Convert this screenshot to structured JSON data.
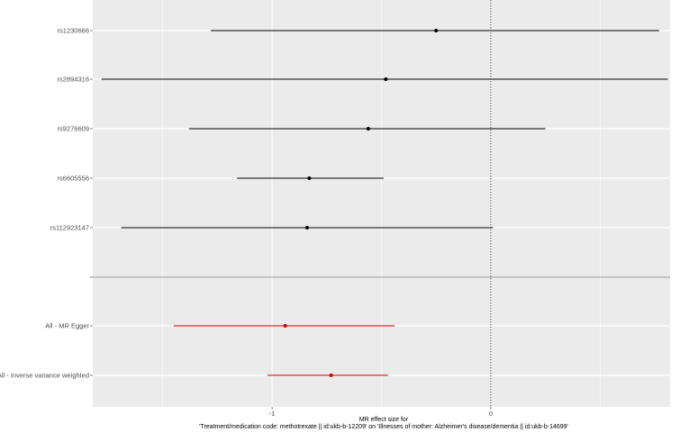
{
  "chart_data": {
    "type": "forest",
    "xlabel_lines": [
      "MR effect size for",
      "'Treatment/medication code: methotrexate || id:ukb-b-12209' on 'Illnesses of mother: Alzheimer's disease/dementia || id:ukb-b-14699'"
    ],
    "xlim": [
      -1.82,
      0.82
    ],
    "x_ticks": [
      -1,
      0
    ],
    "x_tick_labels": [
      "-1",
      "0"
    ],
    "null_line": 0,
    "grid": true,
    "separator_label": "",
    "snp_rows": [
      {
        "label": "rs1230666",
        "estimate": -0.25,
        "lower": -1.28,
        "upper": 0.77
      },
      {
        "label": "rs2894316",
        "estimate": -0.48,
        "lower": -1.78,
        "upper": 0.81
      },
      {
        "label": "rs9276609",
        "estimate": -0.56,
        "lower": -1.38,
        "upper": 0.25
      },
      {
        "label": "rs6605556",
        "estimate": -0.83,
        "lower": -1.16,
        "upper": -0.49
      },
      {
        "label": "rs112923147",
        "estimate": -0.84,
        "lower": -1.69,
        "upper": 0.01
      }
    ],
    "summary_rows": [
      {
        "label": "All - MR Egger",
        "estimate": -0.94,
        "lower": -1.45,
        "upper": -0.44
      },
      {
        "label": "All - Inverse variance weighted",
        "estimate": -0.73,
        "lower": -1.02,
        "upper": -0.47
      }
    ],
    "colors": {
      "panel": "#ebebeb",
      "grid": "#ffffff",
      "snp": "#000000",
      "summary": "#cc0000",
      "null_line": "#333333",
      "separator": "#999999"
    }
  }
}
